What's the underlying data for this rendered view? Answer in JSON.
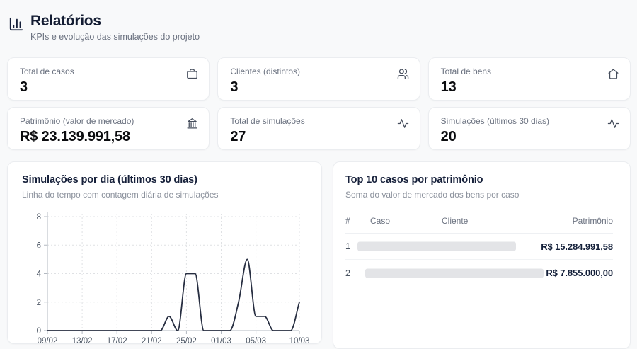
{
  "header": {
    "title": "Relatórios",
    "subtitle": "KPIs e evolução das simulações do projeto",
    "icon": "bar-chart-icon"
  },
  "kpis": [
    {
      "label": "Total de casos",
      "value": "3",
      "icon": "briefcase-icon"
    },
    {
      "label": "Clientes (distintos)",
      "value": "3",
      "icon": "users-icon"
    },
    {
      "label": "Total de bens",
      "value": "13",
      "icon": "home-icon"
    },
    {
      "label": "Patrimônio (valor de mercado)",
      "value": "R$ 23.139.991,58",
      "icon": "landmark-icon"
    },
    {
      "label": "Total de simulações",
      "value": "27",
      "icon": "activity-icon"
    },
    {
      "label": "Simulações (últimos 30 dias)",
      "value": "20",
      "icon": "activity-icon"
    }
  ],
  "chart_panel": {
    "title": "Simulações por dia (últimos 30 dias)",
    "subtitle": "Linha do tempo com contagem diária de simulações"
  },
  "chart_data": {
    "type": "line",
    "title": "Simulações por dia (últimos 30 dias)",
    "x": [
      "09/02",
      "10/02",
      "11/02",
      "12/02",
      "13/02",
      "14/02",
      "15/02",
      "16/02",
      "17/02",
      "18/02",
      "19/02",
      "20/02",
      "21/02",
      "22/02",
      "23/02",
      "24/02",
      "25/02",
      "26/02",
      "27/02",
      "28/02",
      "01/03",
      "02/03",
      "03/03",
      "04/03",
      "05/03",
      "06/03",
      "07/03",
      "08/03",
      "09/03",
      "10/03"
    ],
    "values": [
      0,
      0,
      0,
      0,
      0,
      0,
      0,
      0,
      0,
      0,
      0,
      0,
      0,
      0,
      1,
      0,
      4,
      4,
      0,
      0,
      0,
      0,
      2,
      5,
      1,
      1,
      0,
      0,
      0,
      2
    ],
    "x_tick_labels": [
      "09/02",
      "13/02",
      "17/02",
      "21/02",
      "25/02",
      "01/03",
      "05/03",
      "10/03"
    ],
    "x_tick_indices": [
      0,
      4,
      8,
      12,
      16,
      20,
      24,
      29
    ],
    "y_ticks": [
      0,
      2,
      4,
      6,
      8
    ],
    "ylim": [
      0,
      8
    ],
    "grid": true,
    "legend": false,
    "line_color": "#272e41",
    "grid_color": "#dfe1e4",
    "axis_color": "#b3b9c1",
    "tick_text_color": "#4b5563"
  },
  "table_panel": {
    "title": "Top 10 casos por patrimônio",
    "subtitle": "Soma do valor de mercado dos bens por caso",
    "columns": {
      "rank": "#",
      "caso": "Caso",
      "cliente": "Cliente",
      "patrimonio": "Patrimônio"
    },
    "rows": [
      {
        "rank": "1",
        "caso_redacted": true,
        "cliente_redacted": true,
        "patrimonio": "R$ 15.284.991,58"
      },
      {
        "rank": "2",
        "caso_redacted": true,
        "cliente_redacted": true,
        "patrimonio": "R$ 7.855.000,00"
      }
    ]
  }
}
